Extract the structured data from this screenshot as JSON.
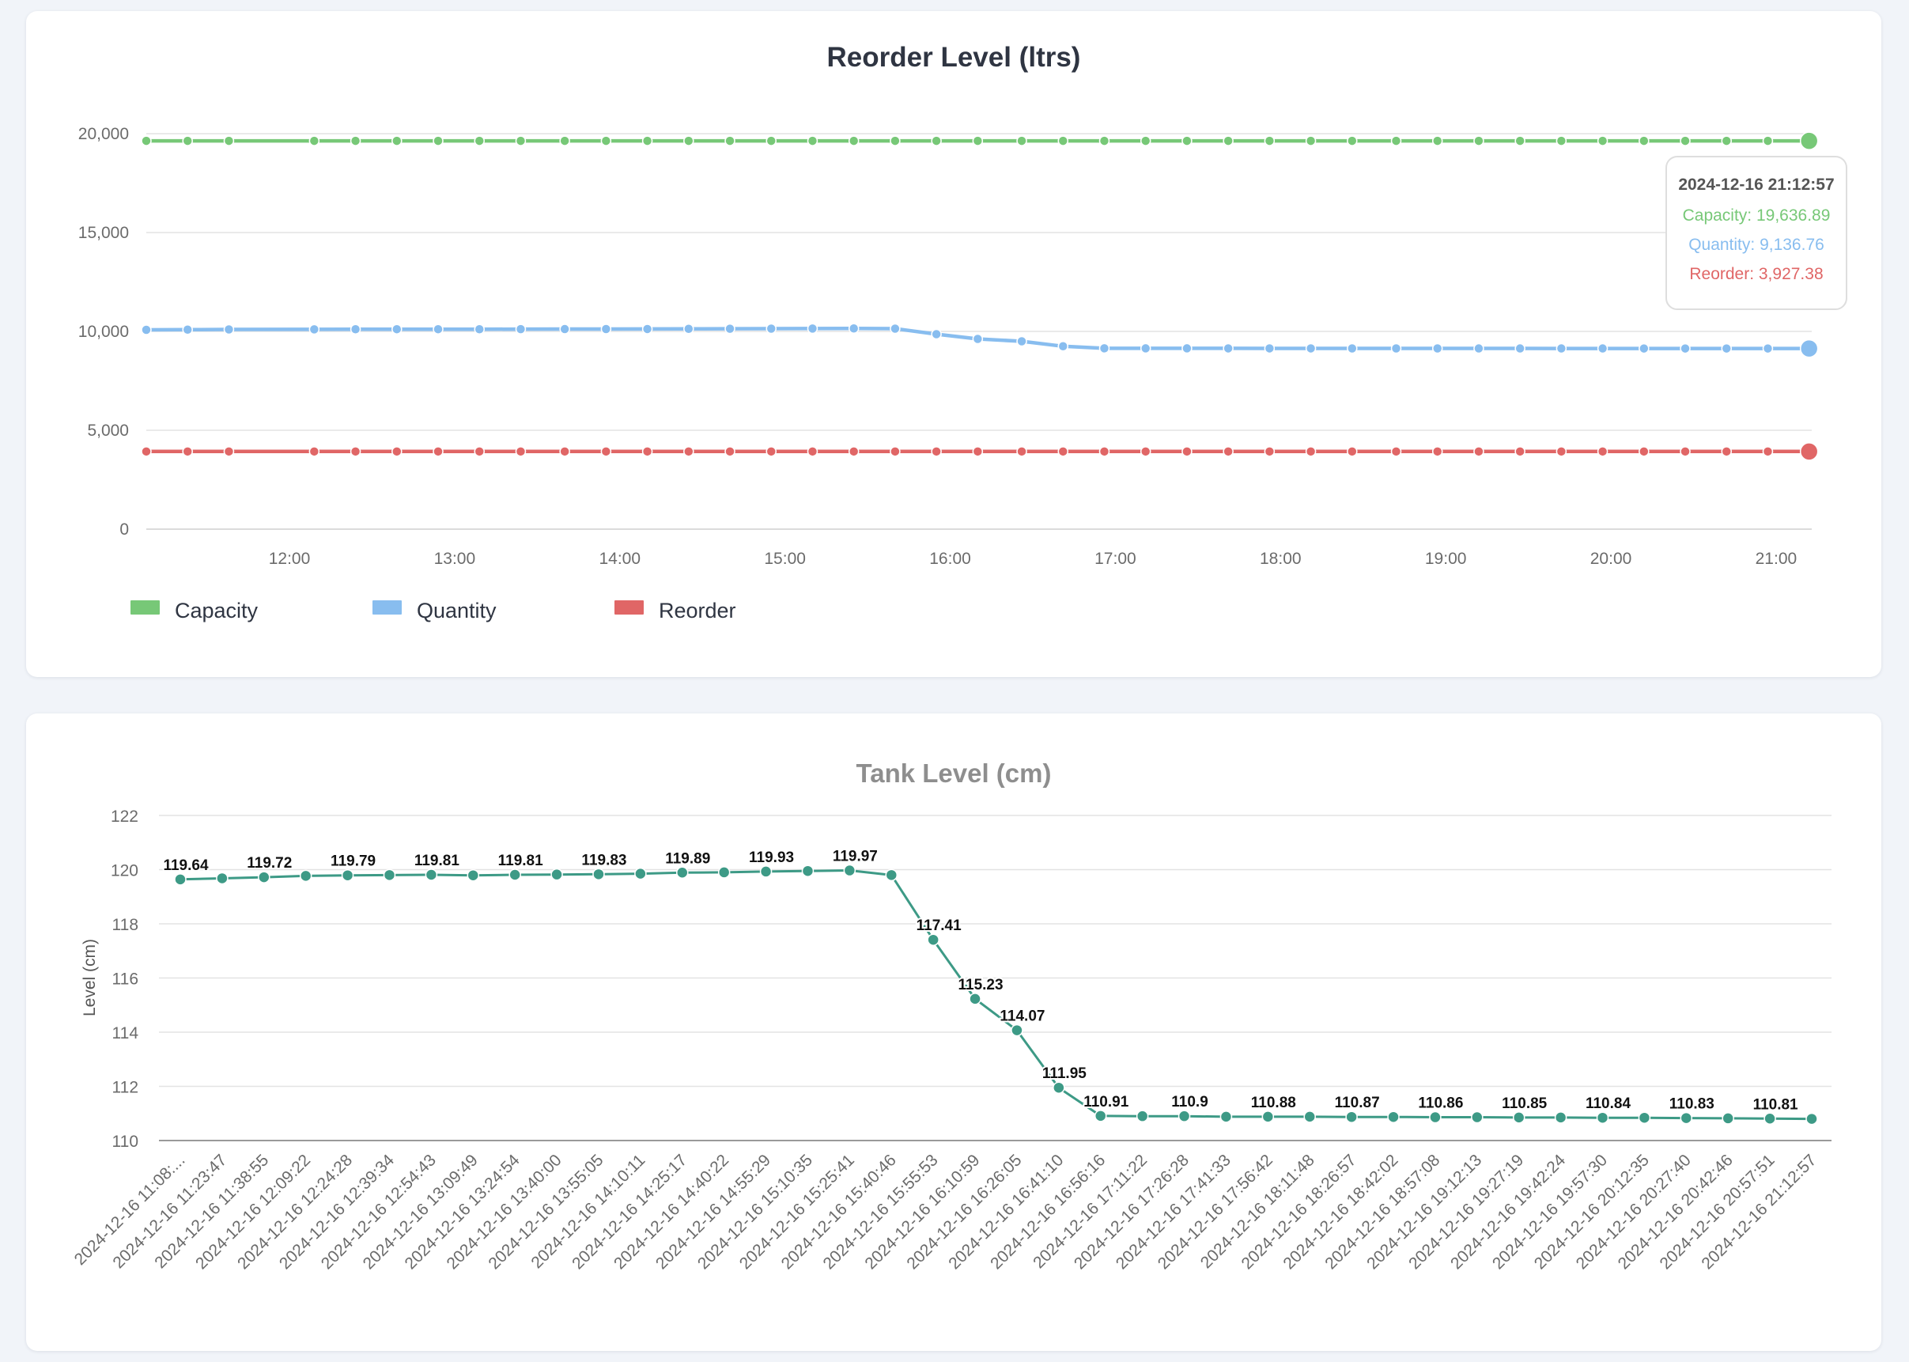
{
  "charts": [
    {
      "type": "line",
      "title": "Reorder Level (ltrs)",
      "ylim": [
        0,
        20000
      ],
      "yticks": [
        0,
        5000,
        10000,
        15000,
        20000
      ],
      "ytick_labels": [
        "0",
        "5,000",
        "10,000",
        "15,000",
        "20,000"
      ],
      "x_start": "11:08",
      "x_end": "21:12:57",
      "xtick_labels": [
        "12:00",
        "13:00",
        "14:00",
        "15:00",
        "16:00",
        "17:00",
        "18:00",
        "19:00",
        "20:00",
        "21:00"
      ],
      "x_times": [
        "11:08",
        "11:23",
        "11:38",
        "12:09",
        "12:24",
        "12:39",
        "12:54",
        "13:09",
        "13:24",
        "13:40",
        "13:55",
        "14:10",
        "14:25",
        "14:40",
        "14:55",
        "15:10",
        "15:25",
        "15:40",
        "15:55",
        "16:10",
        "16:26",
        "16:41",
        "16:56",
        "17:11",
        "17:26",
        "17:41",
        "17:56",
        "18:11",
        "18:26",
        "18:42",
        "18:57",
        "19:12",
        "19:27",
        "19:42",
        "19:57",
        "20:12",
        "20:27",
        "20:42",
        "20:57",
        "21:12"
      ],
      "series": [
        {
          "name": "Capacity",
          "color": "#77c877",
          "values": [
            19636.89,
            19636.89,
            19636.89,
            19636.89,
            19636.89,
            19636.89,
            19636.89,
            19636.89,
            19636.89,
            19636.89,
            19636.89,
            19636.89,
            19636.89,
            19636.89,
            19636.89,
            19636.89,
            19636.89,
            19636.89,
            19636.89,
            19636.89,
            19636.89,
            19636.89,
            19636.89,
            19636.89,
            19636.89,
            19636.89,
            19636.89,
            19636.89,
            19636.89,
            19636.89,
            19636.89,
            19636.89,
            19636.89,
            19636.89,
            19636.89,
            19636.89,
            19636.89,
            19636.89,
            19636.89,
            19636.89
          ]
        },
        {
          "name": "Quantity",
          "color": "#88bdef",
          "values": [
            10080,
            10090,
            10100,
            10105,
            10110,
            10112,
            10112,
            10110,
            10115,
            10118,
            10120,
            10122,
            10130,
            10135,
            10140,
            10145,
            10150,
            10140,
            9860,
            9620,
            9500,
            9250,
            9145,
            9143,
            9143,
            9142,
            9141,
            9141,
            9140,
            9140,
            9140,
            9139,
            9139,
            9138,
            9138,
            9137,
            9137,
            9137,
            9136.9,
            9136.76
          ]
        },
        {
          "name": "Reorder",
          "color": "#e06666",
          "values": [
            3927.38,
            3927.38,
            3927.38,
            3927.38,
            3927.38,
            3927.38,
            3927.38,
            3927.38,
            3927.38,
            3927.38,
            3927.38,
            3927.38,
            3927.38,
            3927.38,
            3927.38,
            3927.38,
            3927.38,
            3927.38,
            3927.38,
            3927.38,
            3927.38,
            3927.38,
            3927.38,
            3927.38,
            3927.38,
            3927.38,
            3927.38,
            3927.38,
            3927.38,
            3927.38,
            3927.38,
            3927.38,
            3927.38,
            3927.38,
            3927.38,
            3927.38,
            3927.38,
            3927.38,
            3927.38,
            3927.38
          ]
        }
      ],
      "legend_position": "bottom-left",
      "tooltip": {
        "title": "2024-12-16 21:12:57",
        "lines": [
          {
            "text": "Capacity: 19,636.89",
            "color": "#77c877"
          },
          {
            "text": "Quantity: 9,136.76",
            "color": "#88bdef"
          },
          {
            "text": "Reorder: 3,927.38",
            "color": "#e06666"
          }
        ]
      }
    },
    {
      "type": "line",
      "title": "Tank Level (cm)",
      "ylabel": "Level (cm)",
      "ylim": [
        110,
        122
      ],
      "yticks": [
        110,
        112,
        114,
        116,
        118,
        120,
        122
      ],
      "line_color": "#3d9a86",
      "categories": [
        "2024-12-16 11:08:...",
        "2024-12-16 11:23:47",
        "2024-12-16 11:38:55",
        "2024-12-16 12:09:22",
        "2024-12-16 12:24:28",
        "2024-12-16 12:39:34",
        "2024-12-16 12:54:43",
        "2024-12-16 13:09:49",
        "2024-12-16 13:24:54",
        "2024-12-16 13:40:00",
        "2024-12-16 13:55:05",
        "2024-12-16 14:10:11",
        "2024-12-16 14:25:17",
        "2024-12-16 14:40:22",
        "2024-12-16 14:55:29",
        "2024-12-16 15:10:35",
        "2024-12-16 15:25:41",
        "2024-12-16 15:40:46",
        "2024-12-16 15:55:53",
        "2024-12-16 16:10:59",
        "2024-12-16 16:26:05",
        "2024-12-16 16:41:10",
        "2024-12-16 16:56:16",
        "2024-12-16 17:11:22",
        "2024-12-16 17:26:28",
        "2024-12-16 17:41:33",
        "2024-12-16 17:56:42",
        "2024-12-16 18:11:48",
        "2024-12-16 18:26:57",
        "2024-12-16 18:42:02",
        "2024-12-16 18:57:08",
        "2024-12-16 19:12:13",
        "2024-12-16 19:27:19",
        "2024-12-16 19:42:24",
        "2024-12-16 19:57:30",
        "2024-12-16 20:12:35",
        "2024-12-16 20:27:40",
        "2024-12-16 20:42:46",
        "2024-12-16 20:57:51",
        "2024-12-16 21:12:57"
      ],
      "values": [
        119.64,
        119.68,
        119.72,
        119.77,
        119.79,
        119.8,
        119.81,
        119.79,
        119.81,
        119.82,
        119.83,
        119.85,
        119.89,
        119.9,
        119.93,
        119.95,
        119.97,
        119.8,
        117.41,
        115.23,
        114.07,
        111.95,
        110.91,
        110.9,
        110.9,
        110.88,
        110.88,
        110.88,
        110.87,
        110.87,
        110.86,
        110.86,
        110.85,
        110.85,
        110.84,
        110.84,
        110.83,
        110.82,
        110.81,
        110.8
      ],
      "labels": [
        {
          "index": 0,
          "text": "119.64"
        },
        {
          "index": 2,
          "text": "119.72"
        },
        {
          "index": 4,
          "text": "119.79"
        },
        {
          "index": 6,
          "text": "119.81"
        },
        {
          "index": 8,
          "text": "119.81"
        },
        {
          "index": 10,
          "text": "119.83"
        },
        {
          "index": 12,
          "text": "119.89"
        },
        {
          "index": 14,
          "text": "119.93"
        },
        {
          "index": 16,
          "text": "119.97"
        },
        {
          "index": 18,
          "text": "117.41"
        },
        {
          "index": 19,
          "text": "115.23"
        },
        {
          "index": 20,
          "text": "114.07"
        },
        {
          "index": 21,
          "text": "111.95"
        },
        {
          "index": 22,
          "text": "110.91"
        },
        {
          "index": 24,
          "text": "110.9"
        },
        {
          "index": 26,
          "text": "110.88"
        },
        {
          "index": 28,
          "text": "110.87"
        },
        {
          "index": 30,
          "text": "110.86"
        },
        {
          "index": 32,
          "text": "110.85"
        },
        {
          "index": 34,
          "text": "110.84"
        },
        {
          "index": 36,
          "text": "110.83"
        },
        {
          "index": 38,
          "text": "110.81"
        }
      ]
    }
  ]
}
